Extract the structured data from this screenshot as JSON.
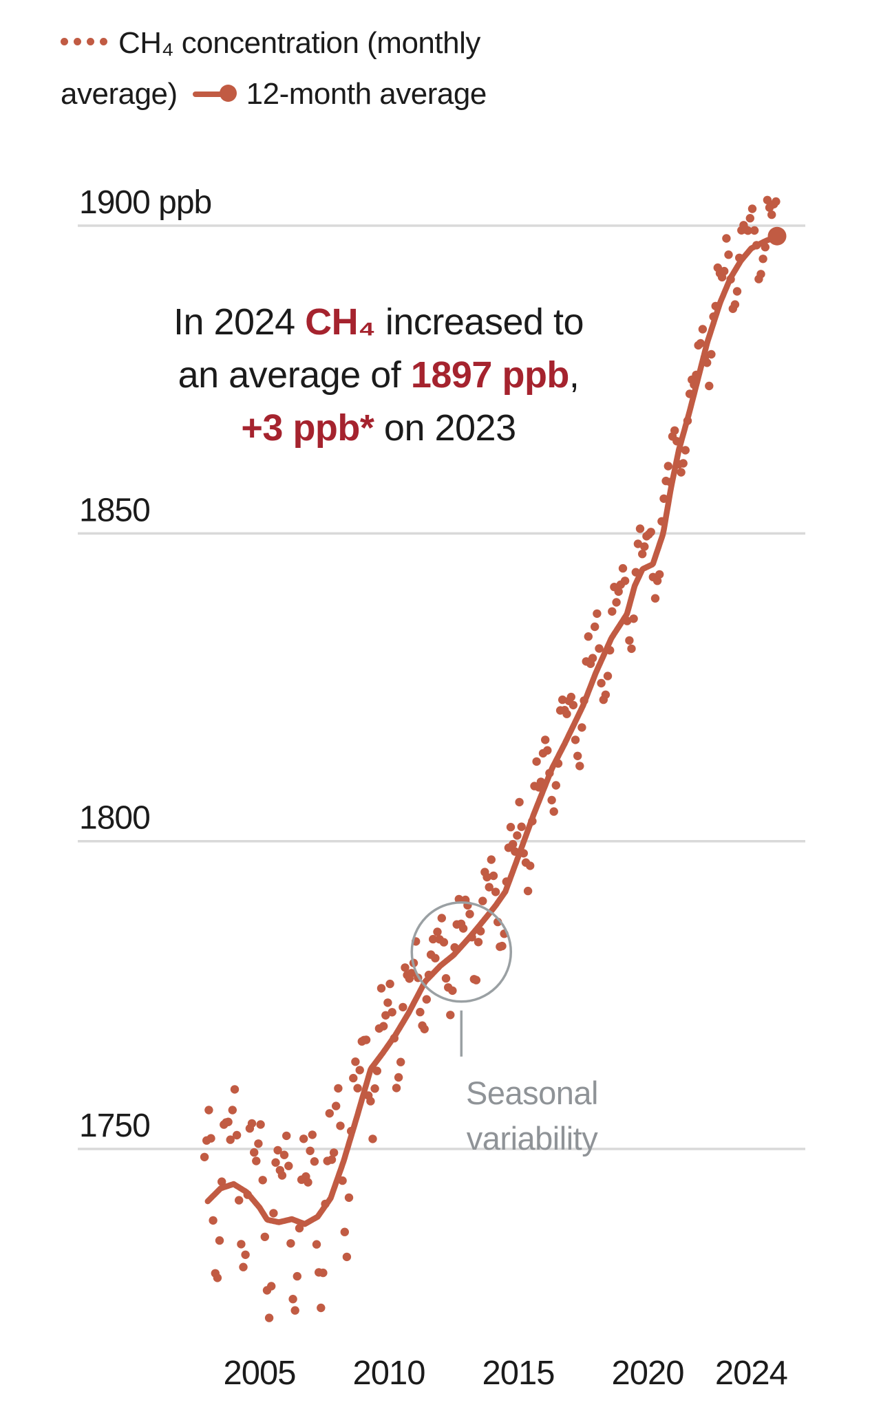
{
  "colors": {
    "accent": "#c15b43",
    "emphasis_red": "#a5232e",
    "gray": "#8f9397",
    "gridline": "#d9d9d9",
    "text": "#1b1b1b",
    "background": "#ffffff"
  },
  "legend": {
    "items": [
      {
        "icon": "dotted-series-icon",
        "label": "CH₄ concentration (monthly average)"
      },
      {
        "icon": "line-dot-series-icon",
        "label": "12-month average"
      }
    ]
  },
  "annotation_callout": {
    "lines": [
      [
        {
          "text": "In 2024 ",
          "style": "plain"
        },
        {
          "text": "CH₄",
          "style": "em"
        },
        {
          "text": " increased to",
          "style": "plain"
        }
      ],
      [
        {
          "text": "an average of ",
          "style": "plain"
        },
        {
          "text": "1897 ppb",
          "style": "em"
        },
        {
          "text": ",",
          "style": "plain"
        }
      ],
      [
        {
          "text": "+3 ppb*",
          "style": "em"
        },
        {
          "text": " on 2023",
          "style": "plain"
        }
      ]
    ]
  },
  "seasonal_callout": {
    "lines": [
      "Seasonal",
      "variability"
    ],
    "anchor_year": 2012.8,
    "anchor_value_ppb": 1782
  },
  "chart_data": {
    "type": "scatter+line",
    "title": "CH₄ concentration, monthly and 12-month average",
    "xlabel": "",
    "ylabel": "ppb",
    "grid": "horizontal",
    "legend_position": "top-left",
    "x_range": [
      2002.8,
      2025.3
    ],
    "y_range": [
      1720,
      1905
    ],
    "y_ticks": [
      {
        "label": "1900 ppb",
        "value": 1900
      },
      {
        "label": "1850",
        "value": 1850
      },
      {
        "label": "1800",
        "value": 1800
      },
      {
        "label": "1750",
        "value": 1750
      }
    ],
    "x_ticks": [
      {
        "label": "2005",
        "year": 2005
      },
      {
        "label": "2010",
        "year": 2010
      },
      {
        "label": "2015",
        "year": 2015
      },
      {
        "label": "2020",
        "year": 2020
      },
      {
        "label": "2024",
        "year": 2024
      }
    ],
    "average_series": {
      "name": "12-month average",
      "type": "line",
      "end_marker": true,
      "points": [
        [
          2003.0,
          1741.5
        ],
        [
          2003.5,
          1743.6
        ],
        [
          2004.0,
          1744.3
        ],
        [
          2004.5,
          1743.0
        ],
        [
          2005.0,
          1740.5
        ],
        [
          2005.3,
          1738.5
        ],
        [
          2005.75,
          1738.1
        ],
        [
          2006.25,
          1738.6
        ],
        [
          2006.75,
          1737.8
        ],
        [
          2007.25,
          1739.0
        ],
        [
          2007.75,
          1742.0
        ],
        [
          2008.25,
          1748.0
        ],
        [
          2008.75,
          1755.0
        ],
        [
          2009.3,
          1763.0
        ],
        [
          2009.75,
          1765.5
        ],
        [
          2010.25,
          1768.5
        ],
        [
          2010.75,
          1772.0
        ],
        [
          2011.4,
          1777.2
        ],
        [
          2012.0,
          1779.8
        ],
        [
          2012.5,
          1781.5
        ],
        [
          2013.1,
          1784.3
        ],
        [
          2013.5,
          1786.3
        ],
        [
          2014.1,
          1789.4
        ],
        [
          2014.5,
          1791.8
        ],
        [
          2015.0,
          1797.5
        ],
        [
          2015.6,
          1804.4
        ],
        [
          2016.3,
          1811.8
        ],
        [
          2016.8,
          1815.9
        ],
        [
          2017.5,
          1822.0
        ],
        [
          2018.0,
          1827.4
        ],
        [
          2018.6,
          1833.0
        ],
        [
          2019.2,
          1836.9
        ],
        [
          2019.5,
          1841.5
        ],
        [
          2019.8,
          1844.2
        ],
        [
          2020.2,
          1845.0
        ],
        [
          2020.6,
          1850.0
        ],
        [
          2020.9,
          1857.4
        ],
        [
          2021.2,
          1863.5
        ],
        [
          2021.6,
          1869.5
        ],
        [
          2021.9,
          1874.4
        ],
        [
          2022.3,
          1881.0
        ],
        [
          2022.8,
          1887.5
        ],
        [
          2023.2,
          1891.5
        ],
        [
          2023.6,
          1894.3
        ],
        [
          2024.0,
          1896.3
        ],
        [
          2024.5,
          1897.4
        ],
        [
          2025.0,
          1898.3
        ]
      ]
    },
    "monthly_series": {
      "name": "CH₄ concentration (monthly average)",
      "type": "scatter",
      "start_year": 2002.875,
      "months": 266,
      "model": {
        "basis": "average_series",
        "seasonal_pattern_by_month": [
          0.55,
          0.8,
          0.95,
          0.5,
          -0.15,
          -0.7,
          -1.0,
          -0.6,
          0.05,
          0.6,
          0.85,
          0.55
        ],
        "amplitude_ppb_bands": [
          {
            "until": 2008.5,
            "amp": 15
          },
          {
            "until": 2011.0,
            "amp": 10
          },
          {
            "until": 2020.0,
            "amp": 8
          },
          {
            "until": 2026.0,
            "amp": 7
          }
        ],
        "noise_ppb": 2.5,
        "rng_seed": 12
      }
    },
    "annual_means_ppb": {
      "2003": 1743,
      "2004": 1744,
      "2005": 1739,
      "2006": 1738,
      "2007": 1740,
      "2008": 1749,
      "2009": 1763,
      "2010": 1769,
      "2011": 1776,
      "2012": 1780,
      "2013": 1785,
      "2014": 1790,
      "2015": 1800,
      "2016": 1812,
      "2017": 1820,
      "2018": 1829,
      "2019": 1840,
      "2020": 1847,
      "2021": 1865,
      "2022": 1882,
      "2023": 1894,
      "2024": 1897
    },
    "annotations": [
      "In 2024 CH₄ increased to an average of 1897 ppb, +3 ppb* on 2023",
      "Seasonal variability"
    ]
  }
}
